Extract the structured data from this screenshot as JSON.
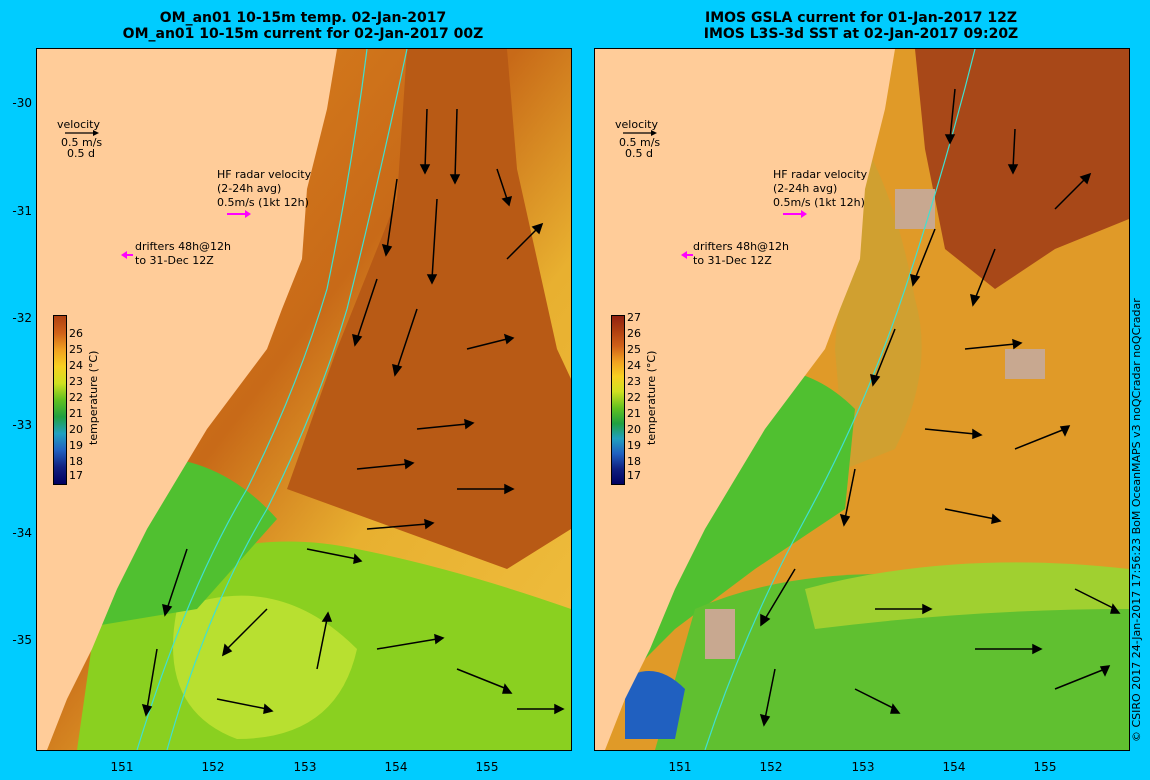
{
  "left": {
    "title_line1": "OM_an01 10-15m temp. 02-Jan-2017",
    "title_line2": "OM_an01 10-15m current for 02-Jan-2017 00Z",
    "colorbar_ticks": [
      "26",
      "25",
      "24",
      "23",
      "22",
      "21",
      "20",
      "19",
      "18",
      "17"
    ],
    "colorbar_label": "temperature (°C)"
  },
  "right": {
    "title_line1": "IMOS GSLA current for 01-Jan-2017 12Z",
    "title_line2": "IMOS L3S-3d SST at 02-Jan-2017 09:20Z",
    "colorbar_ticks": [
      "27",
      "26",
      "25",
      "24",
      "23",
      "22",
      "21",
      "20",
      "19",
      "18",
      "17"
    ],
    "colorbar_label": "temperature (°C)"
  },
  "legend": {
    "velocity_title": "velocity",
    "velocity_speed": "0.5 m/s",
    "velocity_time": "0.5 d",
    "hf_line1": "HF radar velocity",
    "hf_line2": "(2-24h avg)",
    "hf_line3": "0.5m/s (1kt 12h)",
    "drifters_line1": "drifters 48h@12h",
    "drifters_line2": "to 31-Dec 12Z"
  },
  "axes": {
    "y_ticks": [
      "-30",
      "-31",
      "-32",
      "-33",
      "-34",
      "-35"
    ],
    "x_ticks": [
      "151",
      "152",
      "153",
      "154",
      "155"
    ]
  },
  "credit": "© CSIRO 2017   24-Jan-2017 17:56:23 BoM OceanMAPS v3 noQCradar noQCradar",
  "colors": {
    "background": "#00ccff",
    "land": "#ffcc99",
    "warm": "#c05a10",
    "mid": "#f0a020",
    "cool": "#40c040",
    "magenta": "#ff00ff",
    "cyan_contour": "#40e0d0"
  }
}
